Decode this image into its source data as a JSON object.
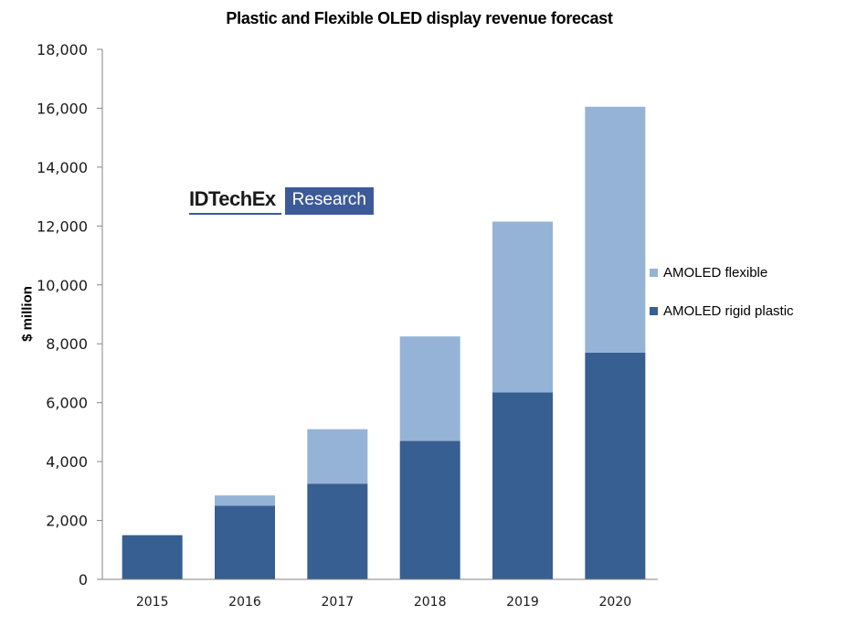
{
  "chart_data": {
    "type": "bar",
    "stacked": true,
    "title": "Plastic and Flexible OLED  display revenue forecast",
    "xlabel": "",
    "ylabel": "$ million",
    "ylim": [
      0,
      18000
    ],
    "yticks": [
      "0",
      "2,000",
      "4,000",
      "6,000",
      "8,000",
      "10,000",
      "12,000",
      "14,000",
      "16,000",
      "18,000"
    ],
    "ytick_values": [
      0,
      2000,
      4000,
      6000,
      8000,
      10000,
      12000,
      14000,
      16000,
      18000
    ],
    "categories": [
      "2015",
      "2016",
      "2017",
      "2018",
      "2019",
      "2020"
    ],
    "series": [
      {
        "name": "AMOLED rigid plastic",
        "color": "#375f91",
        "values": [
          1500,
          2500,
          3250,
          4700,
          6350,
          7700
        ]
      },
      {
        "name": "AMOLED flexible",
        "color": "#95b3d7",
        "values": [
          0,
          350,
          1850,
          3550,
          5800,
          8350
        ]
      }
    ],
    "legend_position": "right",
    "grid": false
  },
  "logo": {
    "brand": "IDTechEx",
    "tag": "Research"
  },
  "legend": [
    {
      "label": "AMOLED flexible",
      "color": "#95b3d7"
    },
    {
      "label": "AMOLED rigid plastic",
      "color": "#375f91"
    }
  ]
}
